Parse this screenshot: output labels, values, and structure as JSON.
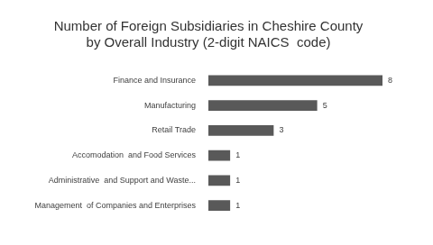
{
  "chart_data": {
    "type": "bar",
    "title": [
      "Number of Foreign Subsidiaries in Cheshire County",
      "by Overall Industry (2-digit NAICS  code)"
    ],
    "orientation": "horizontal",
    "categories": [
      "Finance and Insurance",
      "Manufacturing",
      "Retail Trade",
      "Accomodation  and Food Services",
      "Administrative  and Support and Waste...",
      "Management  of Companies and Enterprises"
    ],
    "values": [
      8,
      5,
      3,
      1,
      1,
      1
    ],
    "color": "#595959",
    "xlim": [
      0,
      8
    ],
    "grid": false,
    "legend": false,
    "data_labels": true,
    "tick_labels": "y"
  }
}
